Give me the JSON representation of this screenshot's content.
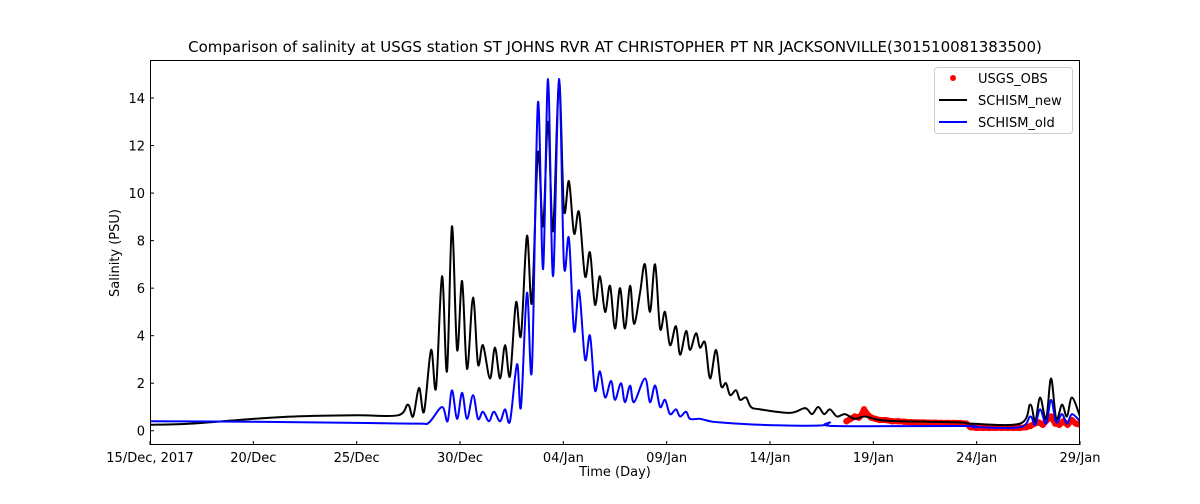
{
  "chart_data": {
    "type": "line",
    "title": "Comparison of salinity at USGS station ST JOHNS RVR AT CHRISTOPHER PT NR JACKSONVILLE(301510081383500)",
    "xlabel": "Time (Day)",
    "ylabel": "Salinity (PSU)",
    "x_units": "days since 15/Dec/2017",
    "xlim": [
      0,
      45
    ],
    "ylim": [
      -0.6,
      15.6
    ],
    "x_ticks": [
      0,
      5,
      10,
      15,
      20,
      25,
      30,
      35,
      40,
      45
    ],
    "x_tick_labels": [
      "15/Dec, 2017",
      "20/Dec",
      "25/Dec",
      "30/Dec",
      "04/Jan",
      "09/Jan",
      "14/Jan",
      "19/Jan",
      "24/Jan",
      "29/Jan"
    ],
    "y_ticks": [
      0,
      2,
      4,
      6,
      8,
      10,
      12,
      14
    ],
    "y_tick_labels": [
      "0",
      "2",
      "4",
      "6",
      "8",
      "10",
      "12",
      "14"
    ],
    "grid": false,
    "legend_placement": "top-right",
    "series": [
      {
        "name": "USGS_OBS",
        "style": "markers",
        "color": "#ff0000",
        "points": [
          [
            33.7,
            0.4
          ],
          [
            33.9,
            0.5
          ],
          [
            34.1,
            0.6
          ],
          [
            34.3,
            0.55
          ],
          [
            34.45,
            0.7
          ],
          [
            34.55,
            0.9
          ],
          [
            34.7,
            0.7
          ],
          [
            34.9,
            0.55
          ],
          [
            35.1,
            0.5
          ],
          [
            35.3,
            0.45
          ],
          [
            35.6,
            0.45
          ],
          [
            35.9,
            0.4
          ],
          [
            36.2,
            0.4
          ],
          [
            36.5,
            0.38
          ],
          [
            36.8,
            0.36
          ],
          [
            37.1,
            0.35
          ],
          [
            37.4,
            0.35
          ],
          [
            37.7,
            0.34
          ],
          [
            38.0,
            0.34
          ],
          [
            38.3,
            0.33
          ],
          [
            38.6,
            0.33
          ],
          [
            38.9,
            0.33
          ],
          [
            39.2,
            0.32
          ],
          [
            39.5,
            0.3
          ],
          [
            39.7,
            0.15
          ],
          [
            40.0,
            0.12
          ],
          [
            40.3,
            0.12
          ],
          [
            40.6,
            0.12
          ],
          [
            40.9,
            0.12
          ],
          [
            41.2,
            0.12
          ],
          [
            41.5,
            0.12
          ],
          [
            41.8,
            0.12
          ],
          [
            42.1,
            0.12
          ],
          [
            42.4,
            0.15
          ],
          [
            42.6,
            0.2
          ],
          [
            42.8,
            0.3
          ],
          [
            43.0,
            0.35
          ],
          [
            43.2,
            0.25
          ],
          [
            43.4,
            0.45
          ],
          [
            43.6,
            0.6
          ],
          [
            43.8,
            0.3
          ],
          [
            44.0,
            0.25
          ],
          [
            44.2,
            0.4
          ],
          [
            44.4,
            0.25
          ],
          [
            44.6,
            0.45
          ],
          [
            44.8,
            0.3
          ],
          [
            45.0,
            0.25
          ]
        ]
      },
      {
        "name": "SCHISM_new",
        "style": "line",
        "color": "#000000",
        "points": [
          [
            0,
            0.25
          ],
          [
            2,
            0.3
          ],
          [
            5,
            0.5
          ],
          [
            7,
            0.6
          ],
          [
            10,
            0.65
          ],
          [
            12,
            0.65
          ],
          [
            12.48,
            1.1
          ],
          [
            12.73,
            0.6
          ],
          [
            13.02,
            1.8
          ],
          [
            13.26,
            0.8
          ],
          [
            13.6,
            3.4
          ],
          [
            13.84,
            1.8
          ],
          [
            14.13,
            6.5
          ],
          [
            14.37,
            2.5
          ],
          [
            14.61,
            8.6
          ],
          [
            14.86,
            3.4
          ],
          [
            15.1,
            6.3
          ],
          [
            15.34,
            2.6
          ],
          [
            15.63,
            5.6
          ],
          [
            15.87,
            2.8
          ],
          [
            16.11,
            3.6
          ],
          [
            16.45,
            2.2
          ],
          [
            16.69,
            3.5
          ],
          [
            16.94,
            2.2
          ],
          [
            17.18,
            3.6
          ],
          [
            17.42,
            2.3
          ],
          [
            17.71,
            5.4
          ],
          [
            17.95,
            4.0
          ],
          [
            18.24,
            8.2
          ],
          [
            18.48,
            5.4
          ],
          [
            18.77,
            11.7
          ],
          [
            19.02,
            8.6
          ],
          [
            19.26,
            13.0
          ],
          [
            19.5,
            8.4
          ],
          [
            19.79,
            14.7
          ],
          [
            20.03,
            9.3
          ],
          [
            20.27,
            10.5
          ],
          [
            20.52,
            8.3
          ],
          [
            20.76,
            9.2
          ],
          [
            21.05,
            6.5
          ],
          [
            21.29,
            7.5
          ],
          [
            21.53,
            5.3
          ],
          [
            21.77,
            6.5
          ],
          [
            22.02,
            5.0
          ],
          [
            22.26,
            6.1
          ],
          [
            22.5,
            4.3
          ],
          [
            22.74,
            6.0
          ],
          [
            22.98,
            4.3
          ],
          [
            23.23,
            6.1
          ],
          [
            23.42,
            4.5
          ],
          [
            23.71,
            5.8
          ],
          [
            23.95,
            7.0
          ],
          [
            24.19,
            5.0
          ],
          [
            24.44,
            7.0
          ],
          [
            24.68,
            4.3
          ],
          [
            24.92,
            5.0
          ],
          [
            25.16,
            3.6
          ],
          [
            25.45,
            4.4
          ],
          [
            25.65,
            3.2
          ],
          [
            25.94,
            4.2
          ],
          [
            26.13,
            3.4
          ],
          [
            26.42,
            4.1
          ],
          [
            26.61,
            3.5
          ],
          [
            26.86,
            3.7
          ],
          [
            27.1,
            2.2
          ],
          [
            27.39,
            3.4
          ],
          [
            27.63,
            1.9
          ],
          [
            27.87,
            2.0
          ],
          [
            28.07,
            1.5
          ],
          [
            28.36,
            1.7
          ],
          [
            28.55,
            1.3
          ],
          [
            28.84,
            1.4
          ],
          [
            29.08,
            1.0
          ],
          [
            29.52,
            0.9
          ],
          [
            30.97,
            0.75
          ],
          [
            31.7,
            0.95
          ],
          [
            32.03,
            0.7
          ],
          [
            32.33,
            1.0
          ],
          [
            32.62,
            0.7
          ],
          [
            32.9,
            0.9
          ],
          [
            33.24,
            0.6
          ],
          [
            33.63,
            0.7
          ],
          [
            34.1,
            0.5
          ],
          [
            34.6,
            0.6
          ],
          [
            35.3,
            0.45
          ],
          [
            36.3,
            0.4
          ],
          [
            39.2,
            0.35
          ],
          [
            39.68,
            0.3
          ],
          [
            42.1,
            0.3
          ],
          [
            42.59,
            1.1
          ],
          [
            42.83,
            0.4
          ],
          [
            43.07,
            1.4
          ],
          [
            43.36,
            0.5
          ],
          [
            43.6,
            2.2
          ],
          [
            43.85,
            0.5
          ],
          [
            44.13,
            1.1
          ],
          [
            44.37,
            0.6
          ],
          [
            44.61,
            1.4
          ],
          [
            45,
            0.6
          ]
        ]
      },
      {
        "name": "SCHISM_old",
        "style": "line",
        "color": "#0000ff",
        "points": [
          [
            0,
            0.4
          ],
          [
            5,
            0.38
          ],
          [
            10,
            0.33
          ],
          [
            13.0,
            0.3
          ],
          [
            13.5,
            0.35
          ],
          [
            14.13,
            1.0
          ],
          [
            14.4,
            0.4
          ],
          [
            14.61,
            1.7
          ],
          [
            14.86,
            0.5
          ],
          [
            15.1,
            1.6
          ],
          [
            15.34,
            0.5
          ],
          [
            15.63,
            1.5
          ],
          [
            15.87,
            0.5
          ],
          [
            16.11,
            0.8
          ],
          [
            16.4,
            0.4
          ],
          [
            16.64,
            0.8
          ],
          [
            16.94,
            0.4
          ],
          [
            17.18,
            0.9
          ],
          [
            17.42,
            0.4
          ],
          [
            17.76,
            2.8
          ],
          [
            17.95,
            1.0
          ],
          [
            18.24,
            5.8
          ],
          [
            18.48,
            2.6
          ],
          [
            18.77,
            13.8
          ],
          [
            19.02,
            6.8
          ],
          [
            19.26,
            14.8
          ],
          [
            19.5,
            6.5
          ],
          [
            19.79,
            14.8
          ],
          [
            20.03,
            7.0
          ],
          [
            20.27,
            8.1
          ],
          [
            20.52,
            4.2
          ],
          [
            20.76,
            5.9
          ],
          [
            21.05,
            3.0
          ],
          [
            21.29,
            4.0
          ],
          [
            21.53,
            1.7
          ],
          [
            21.77,
            2.5
          ],
          [
            22.02,
            1.4
          ],
          [
            22.31,
            2.1
          ],
          [
            22.5,
            1.3
          ],
          [
            22.79,
            2.0
          ],
          [
            22.98,
            1.2
          ],
          [
            23.23,
            1.9
          ],
          [
            23.42,
            1.2
          ],
          [
            23.95,
            2.2
          ],
          [
            24.19,
            1.2
          ],
          [
            24.44,
            1.9
          ],
          [
            24.68,
            1.0
          ],
          [
            24.92,
            1.3
          ],
          [
            25.16,
            0.7
          ],
          [
            25.45,
            0.9
          ],
          [
            25.65,
            0.6
          ],
          [
            25.94,
            0.8
          ],
          [
            26.13,
            0.5
          ],
          [
            26.61,
            0.5
          ],
          [
            27.1,
            0.4
          ],
          [
            27.58,
            0.35
          ],
          [
            29.5,
            0.25
          ],
          [
            32.4,
            0.22
          ],
          [
            32.9,
            0.35
          ],
          [
            33.15,
            0.2
          ],
          [
            39.5,
            0.2
          ],
          [
            39.9,
            0.15
          ],
          [
            42.1,
            0.15
          ],
          [
            42.59,
            0.6
          ],
          [
            42.83,
            0.25
          ],
          [
            43.07,
            0.9
          ],
          [
            43.36,
            0.3
          ],
          [
            43.6,
            1.3
          ],
          [
            43.85,
            0.35
          ],
          [
            44.13,
            0.7
          ],
          [
            44.37,
            0.3
          ],
          [
            44.61,
            0.7
          ],
          [
            45,
            0.4
          ]
        ]
      }
    ]
  }
}
